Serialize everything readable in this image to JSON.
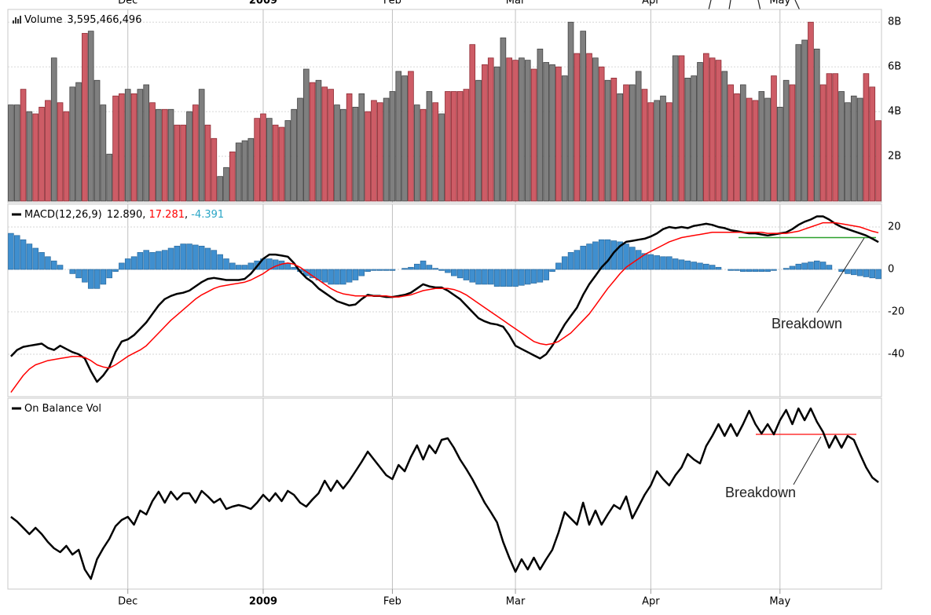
{
  "x_axis": {
    "ticks": [
      {
        "value": 19,
        "label": "Dec"
      },
      {
        "value": 41,
        "label": "2009"
      },
      {
        "value": 62,
        "label": "Feb"
      },
      {
        "value": 82,
        "label": "Mar"
      },
      {
        "value": 104,
        "label": "Apr"
      },
      {
        "value": 125,
        "label": "May"
      }
    ]
  },
  "chart_data": [
    {
      "type": "bar",
      "legend": "Volume",
      "last_value_label": "3,595,466,496",
      "values": [
        4.3,
        4.3,
        5.0,
        4.0,
        3.9,
        4.2,
        4.5,
        6.4,
        4.4,
        4.0,
        5.1,
        5.3,
        7.5,
        7.6,
        5.4,
        4.3,
        2.1,
        4.7,
        4.8,
        5.0,
        4.8,
        5.0,
        5.2,
        4.4,
        4.1,
        4.1,
        4.1,
        3.4,
        3.4,
        4.0,
        4.3,
        5.0,
        3.4,
        2.8,
        1.1,
        1.5,
        2.2,
        2.6,
        2.7,
        2.8,
        3.7,
        3.9,
        3.7,
        3.4,
        3.3,
        3.6,
        4.1,
        4.6,
        5.9,
        5.3,
        5.4,
        5.1,
        5.0,
        4.3,
        4.1,
        4.8,
        4.2,
        4.8,
        4.0,
        4.5,
        4.4,
        4.6,
        4.9,
        5.8,
        5.6,
        5.8,
        4.3,
        4.1,
        4.9,
        4.4,
        3.9,
        4.9,
        4.9,
        4.9,
        5.0,
        7.0,
        5.4,
        6.1,
        6.4,
        6.0,
        7.3,
        6.4,
        6.3,
        6.4,
        6.3,
        5.9,
        6.8,
        6.2,
        6.1,
        6.0,
        5.6,
        8.0,
        6.6,
        7.6,
        6.6,
        6.4,
        6.0,
        5.4,
        5.5,
        4.8,
        5.2,
        5.2,
        5.8,
        5.0,
        4.4,
        4.5,
        4.7,
        4.4,
        6.5,
        6.5,
        5.5,
        5.6,
        6.2,
        6.6,
        6.4,
        6.3,
        5.8,
        5.2,
        4.8,
        5.2,
        4.6,
        4.5,
        4.9,
        4.6,
        5.6,
        4.2,
        5.4,
        5.2,
        7.0,
        7.2,
        8.0,
        6.8,
        5.2,
        5.7,
        5.7,
        4.9,
        4.4,
        4.7,
        4.6,
        5.7,
        5.1,
        3.595466496
      ],
      "colors": [
        "#7f7f7f",
        "#7f7f7f",
        "#cd5c66",
        "#7f7f7f",
        "#cd5c66",
        "#cd5c66",
        "#cd5c66",
        "#7f7f7f",
        "#cd5c66",
        "#cd5c66",
        "#7f7f7f",
        "#7f7f7f",
        "#cd5c66",
        "#7f7f7f",
        "#7f7f7f",
        "#7f7f7f",
        "#7f7f7f",
        "#cd5c66",
        "#cd5c66",
        "#7f7f7f",
        "#cd5c66",
        "#7f7f7f",
        "#7f7f7f",
        "#cd5c66",
        "#7f7f7f",
        "#cd5c66",
        "#7f7f7f",
        "#cd5c66",
        "#cd5c66",
        "#7f7f7f",
        "#cd5c66",
        "#7f7f7f",
        "#cd5c66",
        "#cd5c66",
        "#7f7f7f",
        "#7f7f7f",
        "#cd5c66",
        "#7f7f7f",
        "#7f7f7f",
        "#7f7f7f",
        "#cd5c66",
        "#cd5c66",
        "#7f7f7f",
        "#cd5c66",
        "#cd5c66",
        "#7f7f7f",
        "#7f7f7f",
        "#7f7f7f",
        "#7f7f7f",
        "#cd5c66",
        "#7f7f7f",
        "#cd5c66",
        "#cd5c66",
        "#7f7f7f",
        "#7f7f7f",
        "#cd5c66",
        "#7f7f7f",
        "#7f7f7f",
        "#cd5c66",
        "#cd5c66",
        "#cd5c66",
        "#7f7f7f",
        "#7f7f7f",
        "#7f7f7f",
        "#7f7f7f",
        "#cd5c66",
        "#7f7f7f",
        "#cd5c66",
        "#7f7f7f",
        "#cd5c66",
        "#7f7f7f",
        "#cd5c66",
        "#cd5c66",
        "#cd5c66",
        "#cd5c66",
        "#cd5c66",
        "#7f7f7f",
        "#cd5c66",
        "#cd5c66",
        "#7f7f7f",
        "#7f7f7f",
        "#cd5c66",
        "#cd5c66",
        "#7f7f7f",
        "#7f7f7f",
        "#cd5c66",
        "#7f7f7f",
        "#7f7f7f",
        "#7f7f7f",
        "#cd5c66",
        "#7f7f7f",
        "#7f7f7f",
        "#cd5c66",
        "#7f7f7f",
        "#cd5c66",
        "#7f7f7f",
        "#cd5c66",
        "#7f7f7f",
        "#cd5c66",
        "#7f7f7f",
        "#cd5c66",
        "#7f7f7f",
        "#7f7f7f",
        "#cd5c66",
        "#cd5c66",
        "#7f7f7f",
        "#7f7f7f",
        "#cd5c66",
        "#7f7f7f",
        "#cd5c66",
        "#7f7f7f",
        "#7f7f7f",
        "#7f7f7f",
        "#cd5c66",
        "#cd5c66",
        "#cd5c66",
        "#7f7f7f",
        "#cd5c66",
        "#cd5c66",
        "#7f7f7f",
        "#cd5c66",
        "#cd5c66",
        "#7f7f7f",
        "#7f7f7f",
        "#cd5c66",
        "#7f7f7f",
        "#7f7f7f",
        "#cd5c66",
        "#7f7f7f",
        "#7f7f7f",
        "#cd5c66",
        "#7f7f7f",
        "#cd5c66",
        "#cd5c66",
        "#cd5c66",
        "#7f7f7f",
        "#7f7f7f",
        "#7f7f7f",
        "#7f7f7f",
        "#cd5c66",
        "#cd5c66",
        "#cd5c66"
      ],
      "ylim": [
        0,
        8.5
      ],
      "yticks": [
        {
          "value": 2,
          "label": "2B"
        },
        {
          "value": 4,
          "label": "4B"
        },
        {
          "value": 6,
          "label": "6B"
        },
        {
          "value": 8,
          "label": "8B"
        }
      ],
      "grid": true
    },
    {
      "type": "line",
      "legend": "MACD(12,26,9)",
      "separator": ", ",
      "series": [
        {
          "color": "#000000",
          "style": "line",
          "last_label": "12.890",
          "values": [
            -41,
            -38,
            -36.5,
            -36,
            -35.5,
            -35,
            -37,
            -38,
            -36,
            -37.5,
            -39,
            -40,
            -42,
            -48,
            -53,
            -50,
            -46,
            -39,
            -34,
            -33,
            -31,
            -28,
            -25,
            -21,
            -17,
            -14,
            -12.5,
            -11.5,
            -11,
            -10,
            -8,
            -6,
            -4.5,
            -4,
            -4.5,
            -5,
            -5,
            -5,
            -4.5,
            -2,
            1.5,
            5,
            7,
            7,
            6.5,
            6,
            3,
            -1,
            -4,
            -6,
            -9,
            -11,
            -13,
            -15,
            -16,
            -17,
            -16.5,
            -14,
            -12,
            -12.5,
            -12.5,
            -13,
            -13,
            -12.5,
            -12,
            -11,
            -9,
            -7,
            -8,
            -8.5,
            -8.5,
            -10,
            -12,
            -14,
            -17,
            -20,
            -23,
            -24.5,
            -25.5,
            -26,
            -27,
            -31,
            -36,
            -37.5,
            -39,
            -40.5,
            -42,
            -40,
            -36,
            -31,
            -26,
            -22,
            -18,
            -12,
            -7,
            -3,
            1,
            4,
            8,
            11,
            13,
            13.5,
            14,
            14.5,
            15.5,
            17,
            19,
            20,
            19.5,
            20,
            19.5,
            20.5,
            21,
            21.5,
            21,
            20,
            19.5,
            18.5,
            18,
            17.5,
            17,
            17,
            16.5,
            16,
            16.5,
            17,
            17.5,
            19,
            21,
            22.5,
            23.5,
            25,
            25,
            23.5,
            21.5,
            20,
            19,
            18,
            17,
            16,
            14.5,
            12.89
          ]
        },
        {
          "color": "#ff0000",
          "style": "line",
          "last_label": "17.281",
          "values": [
            -58,
            -54,
            -50,
            -47,
            -45,
            -44,
            -43,
            -42.5,
            -42,
            -41.5,
            -41,
            -41,
            -41.5,
            -43,
            -45,
            -46,
            -46.5,
            -45,
            -43,
            -41,
            -39.5,
            -38,
            -36,
            -33,
            -30,
            -27,
            -24,
            -21.5,
            -19,
            -16.5,
            -14,
            -12,
            -10.5,
            -9,
            -8,
            -7.5,
            -7,
            -6.5,
            -6,
            -5,
            -3.5,
            -2,
            0,
            1.5,
            2.5,
            3,
            2.5,
            1,
            -1,
            -3,
            -5,
            -7,
            -9,
            -10.5,
            -11.5,
            -12,
            -12.5,
            -12.5,
            -12.5,
            -12.5,
            -12.5,
            -12.5,
            -13,
            -13,
            -12.5,
            -12,
            -11,
            -10,
            -9.5,
            -9,
            -9,
            -9,
            -9.5,
            -10.5,
            -12,
            -14,
            -16,
            -18,
            -20,
            -22,
            -24,
            -26,
            -28,
            -30,
            -32,
            -34,
            -35,
            -35.5,
            -35,
            -34,
            -32,
            -30,
            -27,
            -24,
            -21,
            -17,
            -13,
            -9,
            -5.5,
            -2,
            1,
            3,
            5,
            7,
            8.5,
            10,
            11.5,
            13,
            14,
            15,
            15.5,
            16,
            16.5,
            17,
            17.5,
            17.5,
            17.5,
            17.5,
            17.5,
            17.5,
            17.5,
            17.5,
            17.5,
            17,
            17,
            17,
            17,
            17.5,
            18,
            19,
            20,
            21,
            22,
            22,
            22,
            21.5,
            21,
            20.5,
            20,
            19,
            18,
            17.281
          ]
        },
        {
          "color": "#3f8fcf",
          "style": "bars",
          "last_label": "-4.391",
          "values": [
            17,
            16,
            14,
            12,
            10,
            8,
            6,
            4,
            2,
            0,
            -2,
            -4,
            -6,
            -9,
            -9,
            -7,
            -4,
            -1,
            3,
            5,
            6,
            8,
            9,
            8,
            8.5,
            9,
            10,
            11,
            12,
            12,
            11.5,
            11,
            10,
            9,
            7,
            5,
            3,
            2,
            2,
            3,
            4,
            5,
            5,
            4.5,
            4,
            3,
            1,
            -1,
            -3,
            -4,
            -5,
            -6,
            -7,
            -7,
            -7,
            -6,
            -5,
            -3,
            -1,
            -0.5,
            -0.5,
            -0.5,
            -0.5,
            0,
            0.5,
            1,
            2.5,
            4,
            2,
            0.5,
            -0.5,
            -1.5,
            -3,
            -4,
            -5,
            -6,
            -7,
            -7,
            -7,
            -8,
            -8,
            -8,
            -8,
            -7.5,
            -7,
            -6.5,
            -6,
            -5,
            -1,
            3,
            6,
            8,
            9,
            11,
            12,
            13,
            14,
            14,
            13.5,
            13,
            12,
            10.5,
            9,
            7.5,
            7,
            6.5,
            6,
            6,
            5,
            4.5,
            4,
            3.5,
            3,
            2.5,
            2,
            1,
            0,
            -0.5,
            -0.5,
            -1,
            -1,
            -1,
            -1,
            -1,
            -0.5,
            0,
            0.5,
            1.5,
            2.5,
            3,
            3.5,
            4,
            3.5,
            2,
            0,
            -1,
            -2,
            -2.5,
            -3,
            -3.5,
            -4,
            -4.391
          ]
        }
      ],
      "ylim": [
        -60,
        30
      ],
      "yticks": [
        -40,
        -20,
        0,
        20
      ],
      "grid": true,
      "reference_line": {
        "value": 15,
        "color": "#2ca02c"
      },
      "annotation": "Breakdown"
    },
    {
      "type": "line",
      "legend": "On Balance Vol",
      "series": [
        {
          "color": "#000000",
          "style": "line",
          "values": [
            92,
            86,
            78,
            70,
            78,
            70,
            60,
            52,
            47,
            55,
            44,
            50,
            25,
            13,
            38,
            52,
            64,
            80,
            88,
            92,
            82,
            100,
            95,
            112,
            124,
            110,
            124,
            114,
            122,
            122,
            110,
            125,
            118,
            110,
            115,
            102,
            105,
            107,
            105,
            102,
            110,
            120,
            112,
            122,
            112,
            125,
            120,
            110,
            105,
            114,
            122,
            138,
            125,
            138,
            128,
            138,
            150,
            162,
            175,
            165,
            155,
            145,
            140,
            158,
            150,
            168,
            183,
            165,
            183,
            173,
            190,
            192,
            180,
            165,
            153,
            140,
            125,
            110,
            98,
            85,
            60,
            40,
            22,
            38,
            25,
            40,
            25,
            38,
            50,
            72,
            98,
            90,
            82,
            110,
            82,
            100,
            82,
            95,
            107,
            102,
            118,
            90,
            105,
            120,
            132,
            150,
            140,
            132,
            145,
            155,
            172,
            165,
            160,
            182,
            195,
            210,
            195,
            210,
            195,
            210,
            227,
            210,
            198,
            210,
            197,
            215,
            228,
            210,
            230,
            215,
            230,
            213,
            200,
            180,
            195,
            180,
            195,
            190,
            172,
            155,
            142,
            136
          ]
        }
      ],
      "ylim": [
        0,
        243
      ],
      "reference_line": {
        "value": 197,
        "color": "#ff3333"
      },
      "annotation": "Breakdown"
    }
  ]
}
